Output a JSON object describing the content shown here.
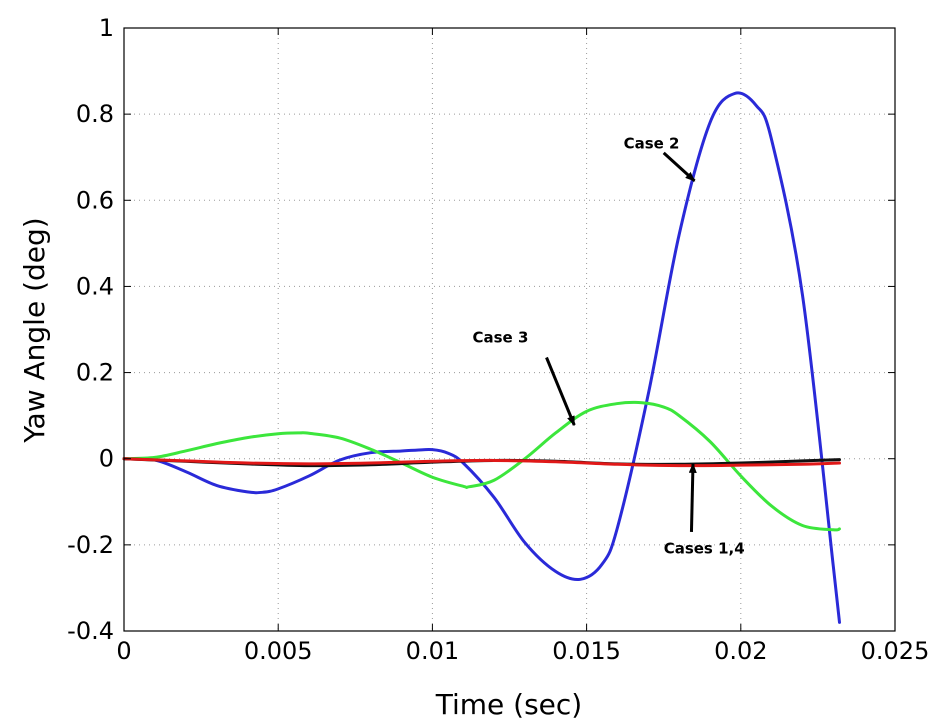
{
  "chart_data": {
    "type": "line",
    "title": "",
    "xlabel": "Time (sec)",
    "ylabel": "Yaw Angle (deg)",
    "xlim": [
      0,
      0.025
    ],
    "ylim": [
      -0.4,
      1
    ],
    "grid": true,
    "xticks": [
      0,
      0.005,
      0.01,
      0.015,
      0.02,
      0.025
    ],
    "xtick_labels": [
      "0",
      "0.005",
      "0.01",
      "0.015",
      "0.02",
      "0.025"
    ],
    "yticks": [
      -0.4,
      -0.2,
      0,
      0.2,
      0.4,
      0.6,
      0.8,
      1
    ],
    "ytick_labels": [
      "-0.4",
      "-0.2",
      "0",
      "0.2",
      "0.4",
      "0.6",
      "0.8",
      "1"
    ],
    "series": [
      {
        "color": "#2a2ad8",
        "x": [
          0,
          0.001,
          0.002,
          0.003,
          0.004,
          0.0045,
          0.005,
          0.006,
          0.007,
          0.008,
          0.009,
          0.0095,
          0.01,
          0.0105,
          0.011,
          0.012,
          0.013,
          0.014,
          0.0148,
          0.0155,
          0.016,
          0.017,
          0.018,
          0.019,
          0.0198,
          0.0205,
          0.021,
          0.022,
          0.023,
          0.0232
        ],
        "y": [
          0,
          -0.003,
          -0.03,
          -0.062,
          -0.077,
          -0.078,
          -0.07,
          -0.04,
          -0.003,
          0.014,
          0.018,
          0.02,
          0.021,
          0.013,
          -0.01,
          -0.09,
          -0.195,
          -0.262,
          -0.28,
          -0.245,
          -0.16,
          0.15,
          0.52,
          0.78,
          0.848,
          0.82,
          0.74,
          0.38,
          -0.25,
          -0.38
        ]
      },
      {
        "color": "#3ce63c",
        "x": [
          0,
          0.001,
          0.002,
          0.003,
          0.004,
          0.005,
          0.0057,
          0.006,
          0.007,
          0.008,
          0.009,
          0.01,
          0.011,
          0.0112,
          0.012,
          0.013,
          0.014,
          0.015,
          0.016,
          0.0168,
          0.0175,
          0.018,
          0.019,
          0.02,
          0.021,
          0.022,
          0.023,
          0.0232
        ],
        "y": [
          0,
          0.003,
          0.018,
          0.035,
          0.049,
          0.058,
          0.06,
          0.059,
          0.048,
          0.022,
          -0.01,
          -0.043,
          -0.064,
          -0.065,
          -0.05,
          0.0,
          0.06,
          0.11,
          0.128,
          0.13,
          0.12,
          0.1,
          0.04,
          -0.04,
          -0.11,
          -0.155,
          -0.165,
          -0.163
        ]
      },
      {
        "color": "#111111",
        "x": [
          0,
          0.002,
          0.004,
          0.006,
          0.008,
          0.01,
          0.012,
          0.014,
          0.016,
          0.018,
          0.02,
          0.022,
          0.0232
        ],
        "y": [
          0,
          -0.006,
          -0.012,
          -0.016,
          -0.014,
          -0.008,
          -0.004,
          -0.006,
          -0.012,
          -0.013,
          -0.01,
          -0.005,
          -0.002
        ]
      },
      {
        "color": "#e01818",
        "x": [
          0,
          0.002,
          0.004,
          0.006,
          0.008,
          0.01,
          0.012,
          0.014,
          0.016,
          0.018,
          0.02,
          0.022,
          0.0232
        ],
        "y": [
          0,
          -0.005,
          -0.01,
          -0.012,
          -0.01,
          -0.006,
          -0.004,
          -0.007,
          -0.013,
          -0.016,
          -0.015,
          -0.013,
          -0.01
        ]
      }
    ],
    "annotations": [
      {
        "text": "Case 2",
        "text_x": 0.0162,
        "text_y": 0.72,
        "arrow_from_x": 0.0175,
        "arrow_from_y": 0.71,
        "arrow_to_x": 0.0185,
        "arrow_to_y": 0.645
      },
      {
        "text": "Case 3",
        "text_x": 0.0113,
        "text_y": 0.27,
        "arrow_from_x": 0.0137,
        "arrow_from_y": 0.235,
        "arrow_to_x": 0.0146,
        "arrow_to_y": 0.078
      },
      {
        "text": "Cases 1,4",
        "text_x": 0.0175,
        "text_y": -0.22,
        "arrow_from_x": 0.0184,
        "arrow_from_y": -0.17,
        "arrow_to_x": 0.01845,
        "arrow_to_y": -0.012
      }
    ]
  }
}
